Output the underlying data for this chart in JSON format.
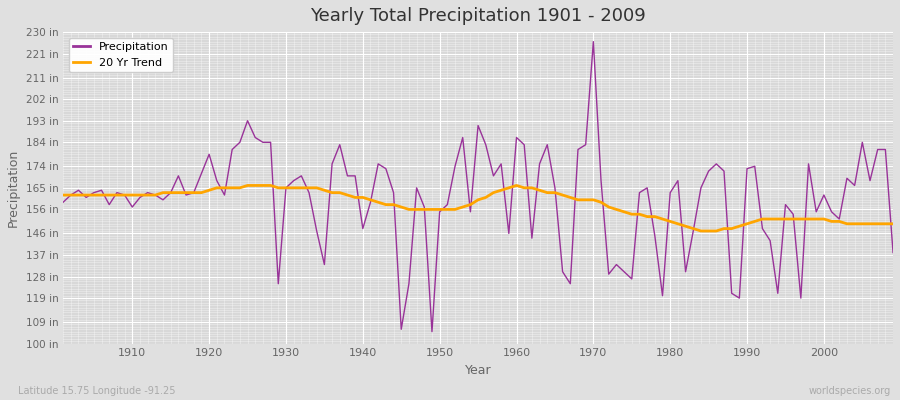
{
  "title": "Yearly Total Precipitation 1901 - 2009",
  "xlabel": "Year",
  "ylabel": "Precipitation",
  "bottom_left": "Latitude 15.75 Longitude -91.25",
  "bottom_right": "worldspecies.org",
  "ylim": [
    100,
    230
  ],
  "xlim": [
    1901,
    2009
  ],
  "yticks": [
    100,
    109,
    119,
    128,
    137,
    146,
    156,
    165,
    174,
    184,
    193,
    202,
    211,
    221,
    230
  ],
  "precipitation_color": "#993399",
  "trend_color": "#FFA500",
  "bg_color": "#E0E0E0",
  "plot_bg_color": "#D8D8D8",
  "legend_labels": [
    "Precipitation",
    "20 Yr Trend"
  ],
  "years": [
    1901,
    1902,
    1903,
    1904,
    1905,
    1906,
    1907,
    1908,
    1909,
    1910,
    1911,
    1912,
    1913,
    1914,
    1915,
    1916,
    1917,
    1918,
    1919,
    1920,
    1921,
    1922,
    1923,
    1924,
    1925,
    1926,
    1927,
    1928,
    1929,
    1930,
    1931,
    1932,
    1933,
    1934,
    1935,
    1936,
    1937,
    1938,
    1939,
    1940,
    1941,
    1942,
    1943,
    1944,
    1945,
    1946,
    1947,
    1948,
    1949,
    1950,
    1951,
    1952,
    1953,
    1954,
    1955,
    1956,
    1957,
    1958,
    1959,
    1960,
    1961,
    1962,
    1963,
    1964,
    1965,
    1966,
    1967,
    1968,
    1969,
    1970,
    1971,
    1972,
    1973,
    1974,
    1975,
    1976,
    1977,
    1978,
    1979,
    1980,
    1981,
    1982,
    1983,
    1984,
    1985,
    1986,
    1987,
    1988,
    1989,
    1990,
    1991,
    1992,
    1993,
    1994,
    1995,
    1996,
    1997,
    1998,
    1999,
    2000,
    2001,
    2002,
    2003,
    2004,
    2005,
    2006,
    2007,
    2008,
    2009
  ],
  "precipitation": [
    159,
    162,
    164,
    161,
    163,
    164,
    158,
    163,
    162,
    157,
    161,
    163,
    162,
    160,
    163,
    170,
    162,
    163,
    171,
    179,
    168,
    162,
    181,
    184,
    193,
    186,
    184,
    184,
    125,
    165,
    168,
    170,
    163,
    147,
    133,
    175,
    183,
    170,
    170,
    148,
    159,
    175,
    173,
    163,
    106,
    125,
    165,
    157,
    105,
    155,
    158,
    174,
    186,
    155,
    191,
    183,
    170,
    175,
    146,
    186,
    183,
    144,
    175,
    183,
    165,
    130,
    125,
    181,
    183,
    226,
    168,
    129,
    133,
    130,
    127,
    163,
    165,
    145,
    120,
    163,
    168,
    130,
    147,
    165,
    172,
    175,
    172,
    121,
    119,
    173,
    174,
    148,
    143,
    121,
    158,
    154,
    119,
    175,
    155,
    162,
    155,
    152,
    169,
    166,
    184,
    168,
    181,
    181,
    138
  ],
  "trend": [
    162,
    162,
    162,
    162,
    162,
    162,
    162,
    162,
    162,
    162,
    162,
    162,
    162,
    163,
    163,
    163,
    163,
    163,
    163,
    164,
    165,
    165,
    165,
    165,
    166,
    166,
    166,
    166,
    165,
    165,
    165,
    165,
    165,
    165,
    164,
    163,
    163,
    162,
    161,
    161,
    160,
    159,
    158,
    158,
    157,
    156,
    156,
    156,
    156,
    156,
    156,
    156,
    157,
    158,
    160,
    161,
    163,
    164,
    165,
    166,
    165,
    165,
    164,
    163,
    163,
    162,
    161,
    160,
    160,
    160,
    159,
    157,
    156,
    155,
    154,
    154,
    153,
    153,
    152,
    151,
    150,
    149,
    148,
    147,
    147,
    147,
    148,
    148,
    149,
    150,
    151,
    152,
    152,
    152,
    152,
    152,
    152,
    152,
    152,
    152,
    151,
    151,
    150,
    150,
    150,
    150,
    150,
    150,
    150
  ]
}
